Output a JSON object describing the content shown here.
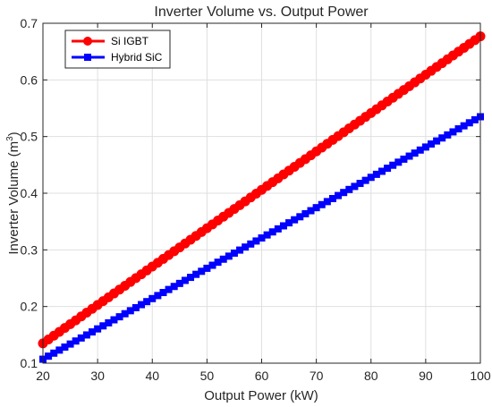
{
  "chart_data": {
    "type": "line",
    "title": "Inverter Volume vs. Output Power",
    "xlabel": "Output Power (kW)",
    "ylabel": "Inverter Volume (m",
    "ylabel_sup": "3",
    "ylabel_close": ")",
    "xlim": [
      20,
      100
    ],
    "ylim": [
      0.1,
      0.7
    ],
    "xticks": [
      20,
      30,
      40,
      50,
      60,
      70,
      80,
      90,
      100
    ],
    "yticks": [
      0.1,
      0.2,
      0.3,
      0.4,
      0.5,
      0.6,
      0.7
    ],
    "xtick_labels": [
      "20",
      "30",
      "40",
      "50",
      "60",
      "70",
      "80",
      "90",
      "100"
    ],
    "ytick_labels": [
      "0.1",
      "0.2",
      "0.3",
      "0.4",
      "0.5",
      "0.6",
      "0.7"
    ],
    "grid": true,
    "legend_position": "top-left",
    "series": [
      {
        "name": "Si IGBT",
        "color": "#ff0000",
        "marker": "circle",
        "x_start": 20,
        "x_end": 100,
        "x_step": 1,
        "y_start": 0.135,
        "y_end": 0.677
      },
      {
        "name": "Hybrid SiC",
        "color": "#0000ff",
        "marker": "square",
        "x_start": 20,
        "x_end": 100,
        "x_step": 1,
        "y_start": 0.107,
        "y_end": 0.535
      }
    ]
  }
}
